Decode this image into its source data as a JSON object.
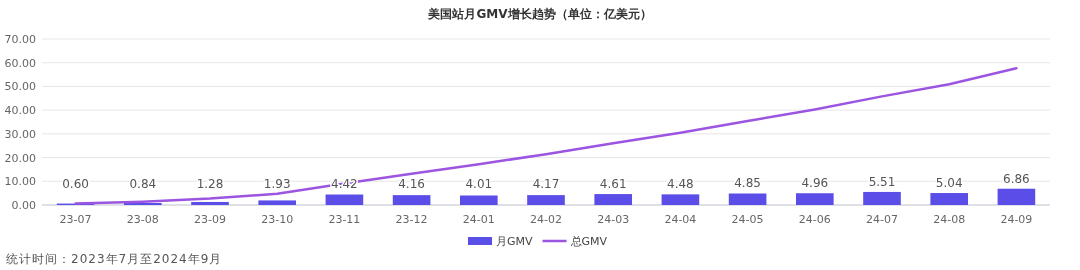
{
  "chart_data": {
    "type": "bar",
    "title": "美国站月GMV增长趋势（单位：亿美元）",
    "categories": [
      "23-07",
      "23-08",
      "23-09",
      "23-10",
      "23-11",
      "23-12",
      "24-01",
      "24-02",
      "24-03",
      "24-04",
      "24-05",
      "24-06",
      "24-07",
      "24-08",
      "24-09"
    ],
    "series": [
      {
        "name": "月GMV",
        "color": "#5b4de8",
        "values": [
          0.6,
          0.84,
          1.28,
          1.93,
          4.42,
          4.16,
          4.01,
          4.17,
          4.61,
          4.48,
          4.85,
          4.96,
          5.51,
          5.04,
          6.86
        ],
        "value_labels": [
          "0.60",
          "0.84",
          "1.28",
          "1.93",
          "4.42",
          "4.16",
          "4.01",
          "4.17",
          "4.61",
          "4.48",
          "4.85",
          "4.96",
          "5.51",
          "5.04",
          "6.86"
        ]
      },
      {
        "name": "总GMV",
        "type": "line",
        "color": "#9b55e0",
        "values": [
          0.6,
          1.4,
          2.7,
          4.7,
          9.1,
          13.2,
          17.2,
          21.4,
          26.0,
          30.5,
          35.4,
          40.3,
          45.8,
          50.9,
          57.7
        ]
      }
    ],
    "ylim": [
      0,
      70
    ],
    "yticks": [
      {
        "value": 0,
        "label": "0.00"
      },
      {
        "value": 10,
        "label": "10.00"
      },
      {
        "value": 20,
        "label": "20.00"
      },
      {
        "value": 30,
        "label": "30.00"
      },
      {
        "value": 40,
        "label": "40.00"
      },
      {
        "value": 50,
        "label": "50.00"
      },
      {
        "value": 60,
        "label": "60.00"
      },
      {
        "value": 70,
        "label": "70.00"
      }
    ],
    "grid": "y",
    "legend": "bottom",
    "marker": "none",
    "line_style": "solid",
    "annotations": [
      "统计时间：2023年7月至2024年9月"
    ]
  }
}
